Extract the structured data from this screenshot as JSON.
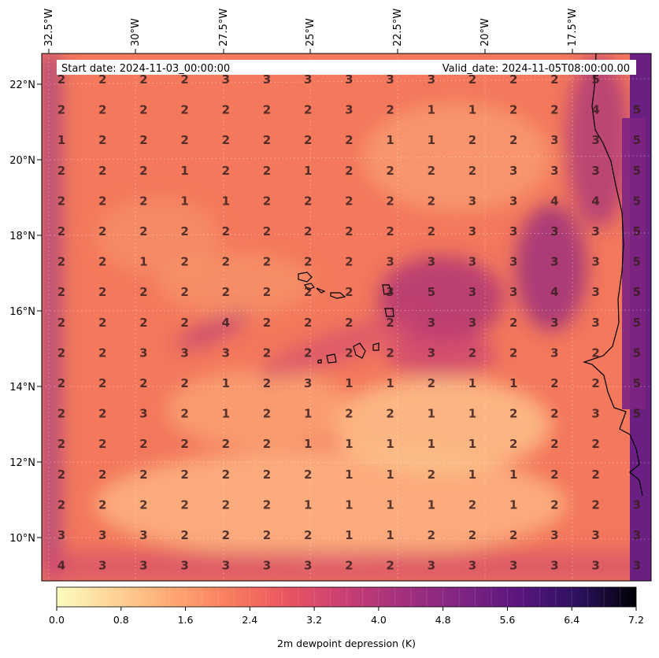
{
  "header": {
    "start_label": "Start date: 2024-11-03_00:00:00",
    "valid_label": "Valid_date: 2024-11-05T08:00:00.00"
  },
  "colorbar": {
    "label": "2m dewpoint depression (K)",
    "min": 0,
    "max": 7.2,
    "ticks": [
      "0.0",
      "0.8",
      "1.6",
      "2.4",
      "3.2",
      "4.0",
      "4.8",
      "5.6",
      "6.4",
      "7.2"
    ]
  },
  "chart_data": {
    "type": "heatmap",
    "title": "",
    "colormap": "magma_r",
    "lon_range": [
      -33,
      -15.5
    ],
    "lat_range": [
      8.8,
      22.8
    ],
    "lon_ticks": [
      "32.5°W",
      "30°W",
      "27.5°W",
      "25°W",
      "22.5°W",
      "20°W",
      "17.5°W"
    ],
    "lat_ticks": [
      "22°N",
      "20°N",
      "18°N",
      "16°N",
      "14°N",
      "12°N",
      "10°N"
    ],
    "grid_values": [
      [
        2,
        2,
        2,
        2,
        3,
        3,
        3,
        3,
        3,
        3,
        2,
        2,
        2,
        5
      ],
      [
        2,
        2,
        2,
        2,
        2,
        2,
        2,
        3,
        2,
        1,
        1,
        2,
        2,
        4,
        5
      ],
      [
        1,
        2,
        2,
        2,
        2,
        2,
        2,
        2,
        1,
        1,
        2,
        2,
        3,
        3,
        5
      ],
      [
        2,
        2,
        2,
        1,
        2,
        2,
        1,
        2,
        2,
        2,
        2,
        3,
        3,
        3,
        5
      ],
      [
        2,
        2,
        2,
        1,
        1,
        2,
        2,
        2,
        2,
        2,
        3,
        3,
        4,
        4,
        5
      ],
      [
        2,
        2,
        2,
        2,
        2,
        2,
        2,
        2,
        2,
        2,
        3,
        3,
        3,
        3,
        5
      ],
      [
        2,
        2,
        1,
        2,
        2,
        2,
        2,
        2,
        3,
        3,
        3,
        3,
        3,
        3,
        5
      ],
      [
        2,
        2,
        2,
        2,
        2,
        2,
        2,
        2,
        3,
        5,
        3,
        3,
        4,
        3,
        5
      ],
      [
        2,
        2,
        2,
        2,
        4,
        2,
        2,
        2,
        2,
        3,
        3,
        2,
        3,
        3,
        5
      ],
      [
        2,
        2,
        3,
        3,
        3,
        2,
        2,
        2,
        2,
        3,
        2,
        2,
        3,
        2,
        5
      ],
      [
        2,
        2,
        2,
        2,
        1,
        2,
        3,
        1,
        1,
        2,
        1,
        1,
        2,
        2,
        5
      ],
      [
        2,
        2,
        3,
        2,
        1,
        2,
        1,
        2,
        2,
        1,
        1,
        2,
        2,
        3,
        5
      ],
      [
        2,
        2,
        2,
        2,
        2,
        2,
        1,
        1,
        1,
        1,
        1,
        2,
        2,
        2
      ],
      [
        2,
        2,
        2,
        2,
        2,
        2,
        2,
        1,
        1,
        2,
        1,
        1,
        2,
        2
      ],
      [
        2,
        2,
        2,
        2,
        2,
        2,
        1,
        1,
        1,
        1,
        2,
        1,
        2,
        2,
        3
      ],
      [
        3,
        3,
        3,
        2,
        2,
        2,
        2,
        1,
        1,
        2,
        2,
        2,
        3,
        3,
        3
      ],
      [
        4,
        3,
        3,
        3,
        3,
        3,
        3,
        2,
        2,
        3,
        3,
        3,
        3,
        3,
        3
      ]
    ]
  }
}
